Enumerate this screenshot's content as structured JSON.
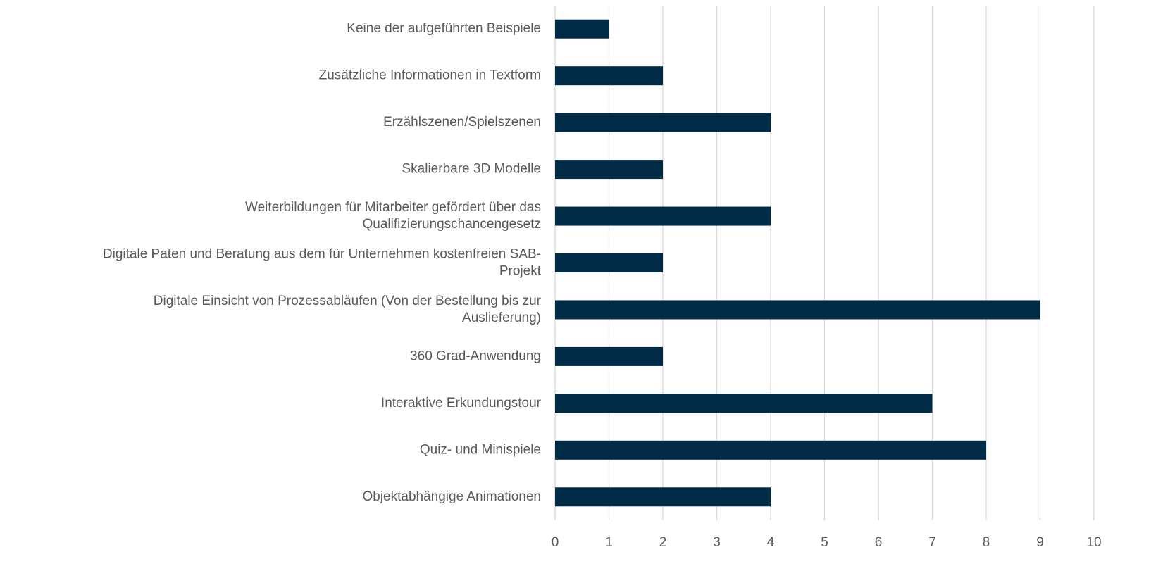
{
  "chart_data": {
    "type": "barh",
    "categories": [
      "Keine der aufgeführten Beispiele",
      "Zusätzliche Informationen in Textform",
      "Erzählszenen/Spielszenen",
      "Skalierbare 3D Modelle",
      "Weiterbildungen für Mitarbeiter gefördert über das\nQualifizierungschancengesetz",
      "Digitale Paten und Beratung aus dem für Unternehmen kostenfreien SAB-\nProjekt",
      "Digitale Einsicht von Prozessabläufen (Von der Bestellung bis zur\nAuslieferung)",
      "360 Grad-Anwendung",
      "Interaktive Erkundungstour",
      "Quiz- und Minispiele",
      "Objektabhängige Animationen"
    ],
    "values": [
      1,
      2,
      4,
      2,
      4,
      2,
      9,
      2,
      7,
      8,
      4
    ],
    "color": "#002b47",
    "xlim": [
      0,
      10
    ],
    "xticks": [
      0,
      1,
      2,
      3,
      4,
      5,
      6,
      7,
      8,
      9,
      10
    ],
    "grid": true
  }
}
